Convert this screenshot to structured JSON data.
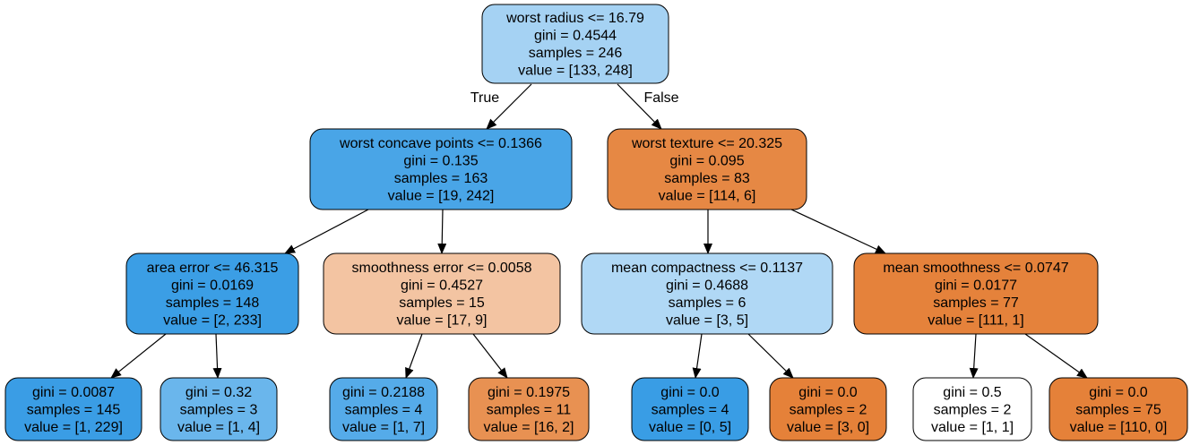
{
  "tree": {
    "edge_labels": {
      "true_label": "True",
      "false_label": "False"
    },
    "nodes": [
      {
        "id": "n0",
        "lines": [
          "worst radius <= 16.79",
          "gini = 0.4544",
          "samples = 246",
          "value = [133, 248]"
        ],
        "color": "#a5d2f3"
      },
      {
        "id": "n1",
        "lines": [
          "worst concave points <= 0.1366",
          "gini = 0.135",
          "samples = 163",
          "value = [19, 242]"
        ],
        "color": "#49a5e7"
      },
      {
        "id": "n2",
        "lines": [
          "worst texture <= 20.325",
          "gini = 0.095",
          "samples = 83",
          "value = [114, 6]"
        ],
        "color": "#e68844"
      },
      {
        "id": "n3",
        "lines": [
          "area error <= 46.315",
          "gini = 0.0169",
          "samples = 148",
          "value = [2, 233]"
        ],
        "color": "#3b9ee5"
      },
      {
        "id": "n4",
        "lines": [
          "smoothness error <= 0.0058",
          "gini = 0.4527",
          "samples = 15",
          "value = [17, 9]"
        ],
        "color": "#f3c4a2"
      },
      {
        "id": "n5",
        "lines": [
          "mean compactness <= 0.1137",
          "gini = 0.4688",
          "samples = 6",
          "value = [3, 5]"
        ],
        "color": "#b0d8f5"
      },
      {
        "id": "n6",
        "lines": [
          "mean smoothness <= 0.0747",
          "gini = 0.0177",
          "samples = 77",
          "value = [111, 1]"
        ],
        "color": "#e5823b"
      },
      {
        "id": "n7",
        "lines": [
          "gini = 0.0087",
          "samples = 145",
          "value = [1, 229]"
        ],
        "color": "#3a9de5"
      },
      {
        "id": "n8",
        "lines": [
          "gini = 0.32",
          "samples = 3",
          "value = [1, 4]"
        ],
        "color": "#6ab6ec"
      },
      {
        "id": "n9",
        "lines": [
          "gini = 0.2188",
          "samples = 4",
          "value = [1, 7]"
        ],
        "color": "#55abe9"
      },
      {
        "id": "n10",
        "lines": [
          "gini = 0.1975",
          "samples = 11",
          "value = [16, 2]"
        ],
        "color": "#e89152"
      },
      {
        "id": "n11",
        "lines": [
          "gini = 0.0",
          "samples = 4",
          "value = [0, 5]"
        ],
        "color": "#399de5"
      },
      {
        "id": "n12",
        "lines": [
          "gini = 0.0",
          "samples = 2",
          "value = [3, 0]"
        ],
        "color": "#e58139"
      },
      {
        "id": "n13",
        "lines": [
          "gini = 0.5",
          "samples = 2",
          "value = [1, 1]"
        ],
        "color": "#ffffff"
      },
      {
        "id": "n14",
        "lines": [
          "gini = 0.0",
          "samples = 75",
          "value = [110, 0]"
        ],
        "color": "#e58139"
      }
    ],
    "edges": [
      {
        "from": "n0",
        "to": "n1"
      },
      {
        "from": "n0",
        "to": "n2"
      },
      {
        "from": "n1",
        "to": "n3"
      },
      {
        "from": "n1",
        "to": "n4"
      },
      {
        "from": "n2",
        "to": "n5"
      },
      {
        "from": "n2",
        "to": "n6"
      },
      {
        "from": "n3",
        "to": "n7"
      },
      {
        "from": "n3",
        "to": "n8"
      },
      {
        "from": "n4",
        "to": "n9"
      },
      {
        "from": "n4",
        "to": "n10"
      },
      {
        "from": "n5",
        "to": "n11"
      },
      {
        "from": "n5",
        "to": "n12"
      },
      {
        "from": "n6",
        "to": "n13"
      },
      {
        "from": "n6",
        "to": "n14"
      }
    ]
  }
}
